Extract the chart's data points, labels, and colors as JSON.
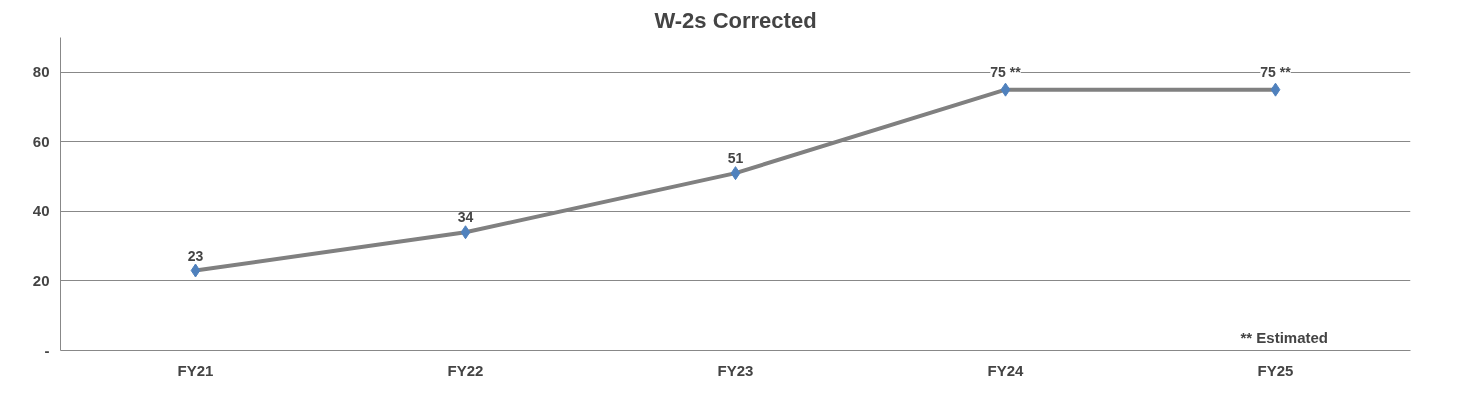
{
  "chart_data": {
    "type": "line",
    "title": "W-2s Corrected",
    "categories": [
      "FY21",
      "FY22",
      "FY23",
      "FY24",
      "FY25"
    ],
    "series": [
      {
        "color": "#808080",
        "colors": [
          "#4f81bd",
          "#4f81bd",
          "#4f81bd",
          "#4f81bd",
          "#4f81bd"
        ],
        "values": [
          23,
          34,
          51,
          75,
          75
        ],
        "value_labels": [
          "23",
          "34",
          "51",
          "75 **",
          "75 **"
        ]
      }
    ],
    "ylim": [
      0,
      90
    ],
    "yticks": [
      {
        "value": 0,
        "label": "-"
      },
      20,
      40,
      60,
      80
    ],
    "grid": "y",
    "marker": "diamond",
    "line_style": "solid",
    "annotations": [
      "** Estimated"
    ]
  }
}
